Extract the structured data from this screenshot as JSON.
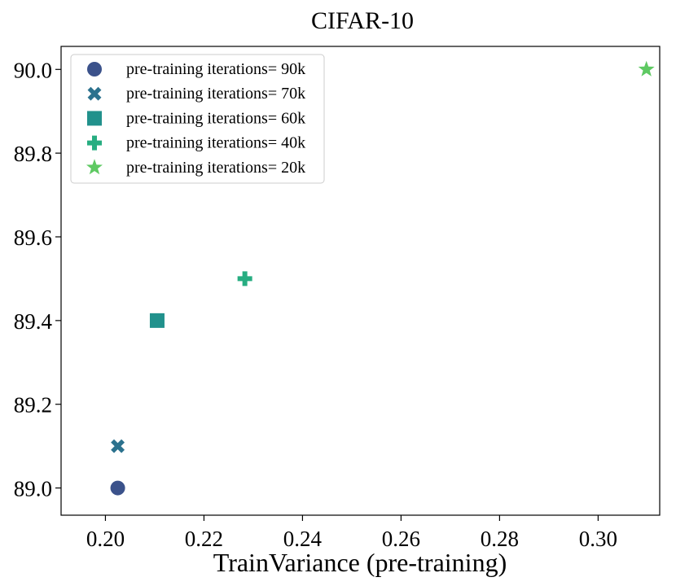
{
  "chart_data": {
    "type": "scatter",
    "title": "CIFAR-10",
    "xlabel": "TrainVariance (pre-training)",
    "ylabel": "",
    "xlim": [
      0.191,
      0.3125
    ],
    "ylim": [
      88.935,
      90.055
    ],
    "xticks": [
      0.2,
      0.22,
      0.24,
      0.26,
      0.28,
      0.3
    ],
    "xtick_labels": [
      "0.20",
      "0.22",
      "0.24",
      "0.26",
      "0.28",
      "0.30"
    ],
    "yticks": [
      89.0,
      89.2,
      89.4,
      89.6,
      89.8,
      90.0
    ],
    "ytick_labels": [
      "89.0",
      "89.2",
      "89.4",
      "89.6",
      "89.8",
      "90.0"
    ],
    "grid": false,
    "legend_position": "top-left",
    "series": [
      {
        "name": "pre-training iterations= 90k",
        "marker": "circle",
        "color": "#3b528b",
        "x": [
          0.2025
        ],
        "y": [
          89.0
        ]
      },
      {
        "name": "pre-training iterations= 70k",
        "marker": "x",
        "color": "#2c728e",
        "x": [
          0.2025
        ],
        "y": [
          89.1
        ]
      },
      {
        "name": "pre-training iterations= 60k",
        "marker": "square",
        "color": "#21918c",
        "x": [
          0.2105
        ],
        "y": [
          89.4
        ]
      },
      {
        "name": "pre-training iterations= 40k",
        "marker": "plus",
        "color": "#27ad81",
        "x": [
          0.2283
        ],
        "y": [
          89.5
        ]
      },
      {
        "name": "pre-training iterations= 20k",
        "marker": "star",
        "color": "#5ec962",
        "x": [
          0.3098
        ],
        "y": [
          90.0
        ]
      }
    ]
  }
}
